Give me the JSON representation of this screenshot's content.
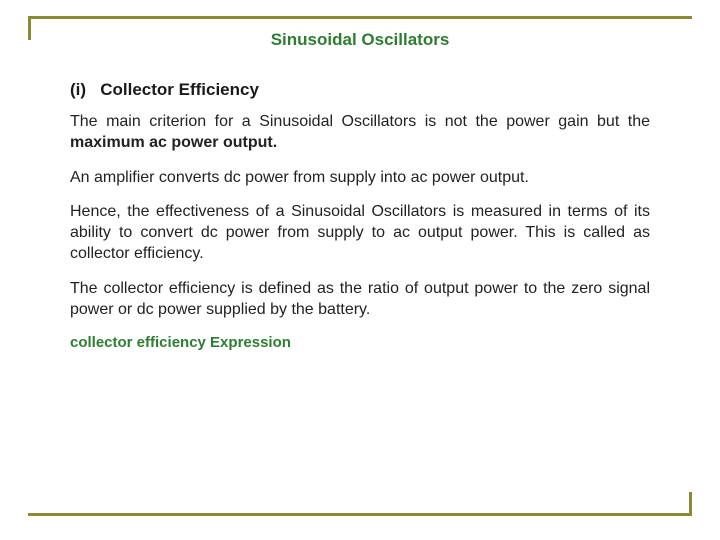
{
  "colors": {
    "rule": "#8a8a33",
    "title": "#2e7d32",
    "heading": "#1a1a1a",
    "body": "#222222",
    "expr": "#2e7d32"
  },
  "typography": {
    "title_fontsize": 17,
    "heading_fontsize": 17,
    "body_fontsize": 16,
    "expr_fontsize": 15
  },
  "title": "Sinusoidal Oscillators",
  "heading_prefix": "(i)",
  "heading_text": "Collector Efficiency",
  "para1_a": "The main criterion for a Sinusoidal Oscillators is not the power gain but the ",
  "para1_b_bold": "maximum ac power output.",
  "para2": "An amplifier converts dc power from supply into ac power output.",
  "para3": "Hence, the effectiveness of a Sinusoidal Oscillators is measured in terms of its ability to convert dc power from supply to ac output power. This is called as collector efficiency.",
  "para4": "The collector efficiency is defined as the ratio of output power to the zero signal  power or dc power supplied by the battery.",
  "expr_label": "collector efficiency Expression"
}
